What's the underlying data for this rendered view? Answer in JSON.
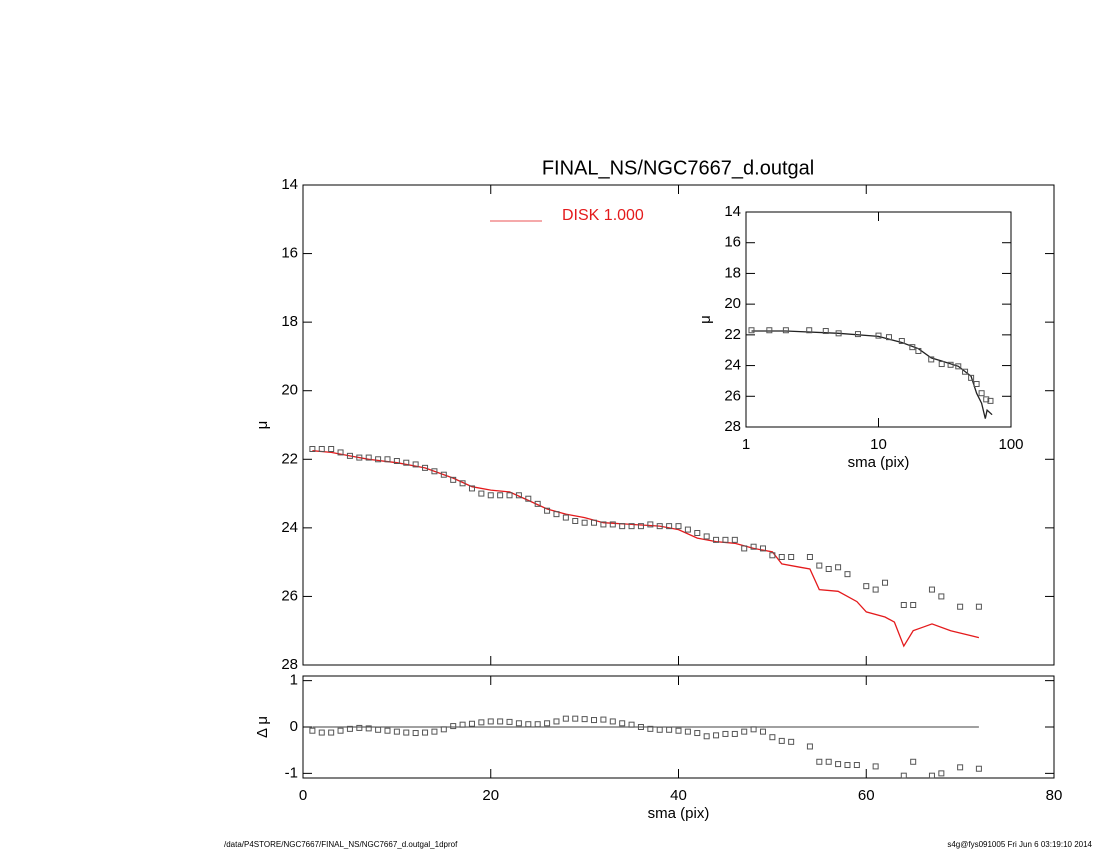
{
  "chart_data": [
    {
      "type": "scatter",
      "title": "FINAL_NS/NGC7667_d.outgal",
      "ylabel": "μ",
      "xlim": [
        0,
        80
      ],
      "ylim": [
        14,
        28
      ],
      "y_inverted": true,
      "xticks": [
        0,
        20,
        40,
        60,
        80
      ],
      "yticks": [
        14,
        16,
        18,
        20,
        22,
        24,
        26,
        28
      ],
      "series": [
        {
          "name": "DISK  1.000",
          "kind": "line",
          "color": "#e41a1c",
          "x": [
            1,
            3,
            5,
            7,
            10,
            13,
            16,
            18,
            20,
            22,
            24,
            26,
            28,
            30,
            32,
            35,
            38,
            40,
            42,
            44,
            46,
            48,
            50,
            51,
            53,
            54,
            55,
            57,
            59,
            60,
            62,
            63,
            64,
            65,
            66,
            67,
            69,
            72
          ],
          "values": [
            21.75,
            21.8,
            21.9,
            22.0,
            22.1,
            22.25,
            22.55,
            22.8,
            22.9,
            22.95,
            23.2,
            23.45,
            23.6,
            23.7,
            23.85,
            23.9,
            23.95,
            24.05,
            24.3,
            24.4,
            24.45,
            24.6,
            24.7,
            25.05,
            25.15,
            25.2,
            25.8,
            25.85,
            26.15,
            26.45,
            26.6,
            26.75,
            27.45,
            27.0,
            26.9,
            26.8,
            27.0,
            27.2
          ]
        },
        {
          "kind": "points",
          "color": "#555555",
          "x": [
            1,
            2,
            3,
            4,
            5,
            6,
            7,
            8,
            9,
            10,
            11,
            12,
            13,
            14,
            15,
            16,
            17,
            18,
            19,
            20,
            21,
            22,
            23,
            24,
            25,
            26,
            27,
            28,
            29,
            30,
            31,
            32,
            33,
            34,
            35,
            36,
            37,
            38,
            39,
            40,
            41,
            42,
            43,
            44,
            45,
            46,
            47,
            48,
            49,
            50,
            51,
            52,
            54,
            55,
            56,
            57,
            58,
            60,
            61,
            62,
            64,
            65,
            67,
            68,
            70,
            72
          ],
          "values": [
            21.7,
            21.7,
            21.7,
            21.8,
            21.9,
            21.95,
            21.95,
            22.0,
            22.0,
            22.05,
            22.1,
            22.15,
            22.25,
            22.35,
            22.45,
            22.6,
            22.7,
            22.85,
            23.0,
            23.05,
            23.05,
            23.05,
            23.05,
            23.15,
            23.3,
            23.5,
            23.6,
            23.7,
            23.8,
            23.85,
            23.85,
            23.9,
            23.9,
            23.95,
            23.95,
            23.95,
            23.9,
            23.95,
            23.95,
            23.95,
            24.05,
            24.15,
            24.25,
            24.35,
            24.35,
            24.35,
            24.6,
            24.55,
            24.6,
            24.8,
            24.85,
            24.85,
            24.85,
            25.1,
            25.2,
            25.15,
            25.35,
            25.7,
            25.8,
            25.6,
            26.25,
            26.25,
            25.8,
            26.0,
            26.3,
            26.3
          ]
        }
      ]
    },
    {
      "type": "scatter",
      "ylabel": "Δ μ",
      "xlabel": "sma (pix)",
      "xlim": [
        0,
        80
      ],
      "ylim": [
        -1.1,
        1.1
      ],
      "xticks": [
        0,
        20,
        40,
        60,
        80
      ],
      "yticks": [
        1,
        0,
        -1
      ],
      "reference_line": 0,
      "series": [
        {
          "kind": "points",
          "color": "#555555",
          "x": [
            1,
            2,
            3,
            4,
            5,
            6,
            7,
            8,
            9,
            10,
            11,
            12,
            13,
            14,
            15,
            16,
            17,
            18,
            19,
            20,
            21,
            22,
            23,
            24,
            25,
            26,
            27,
            28,
            29,
            30,
            31,
            32,
            33,
            34,
            35,
            36,
            37,
            38,
            39,
            40,
            41,
            42,
            43,
            44,
            45,
            46,
            47,
            48,
            49,
            50,
            51,
            52,
            54,
            55,
            56,
            57,
            58,
            59,
            61,
            64,
            65,
            67,
            68,
            70,
            72
          ],
          "values": [
            -0.08,
            -0.12,
            -0.12,
            -0.08,
            -0.04,
            -0.02,
            -0.03,
            -0.06,
            -0.08,
            -0.1,
            -0.12,
            -0.13,
            -0.12,
            -0.1,
            -0.05,
            0.02,
            0.05,
            0.07,
            0.1,
            0.12,
            0.12,
            0.11,
            0.08,
            0.06,
            0.06,
            0.08,
            0.12,
            0.18,
            0.18,
            0.17,
            0.15,
            0.16,
            0.12,
            0.08,
            0.05,
            0.0,
            -0.04,
            -0.06,
            -0.06,
            -0.08,
            -0.1,
            -0.13,
            -0.2,
            -0.18,
            -0.15,
            -0.15,
            -0.1,
            -0.05,
            -0.1,
            -0.22,
            -0.3,
            -0.32,
            -0.42,
            -0.75,
            -0.75,
            -0.8,
            -0.82,
            -0.82,
            -0.85,
            -1.05,
            -0.75,
            -1.05,
            -1.0,
            -0.87,
            -0.9
          ]
        }
      ]
    },
    {
      "type": "scatter",
      "xlabel": "sma (pix)",
      "ylabel": "μ",
      "log_x": true,
      "xlim": [
        1,
        100
      ],
      "ylim": [
        14,
        28
      ],
      "y_inverted": true,
      "xticks": [
        1,
        10,
        100
      ],
      "yticks": [
        14,
        16,
        18,
        20,
        22,
        24,
        26,
        28
      ],
      "series": [
        {
          "kind": "line",
          "color": "#222222",
          "x": [
            1.1,
            2,
            5,
            10,
            15,
            20,
            25,
            30,
            40,
            50,
            55,
            60,
            64,
            66,
            72
          ],
          "values": [
            21.75,
            21.75,
            21.9,
            22.1,
            22.5,
            22.9,
            23.5,
            23.7,
            24.05,
            24.7,
            25.8,
            26.45,
            27.45,
            26.9,
            27.2
          ]
        },
        {
          "kind": "points",
          "color": "#555555",
          "x": [
            1.1,
            1.5,
            2,
            3,
            4,
            5,
            7,
            10,
            12,
            15,
            18,
            20,
            25,
            30,
            35,
            40,
            45,
            50,
            55,
            60,
            65,
            70
          ],
          "values": [
            21.7,
            21.7,
            21.7,
            21.7,
            21.75,
            21.9,
            21.95,
            22.05,
            22.15,
            22.4,
            22.8,
            23.05,
            23.6,
            23.9,
            23.95,
            24.05,
            24.4,
            24.8,
            25.2,
            25.8,
            26.2,
            26.3
          ]
        }
      ]
    }
  ],
  "footer": {
    "left": "/data/P4STORE/NGC7667/FINAL_NS/NGC7667_d.outgal_1dprof",
    "right": "s4g@fys091005  Fri Jun  6 03:19:10 2014"
  }
}
